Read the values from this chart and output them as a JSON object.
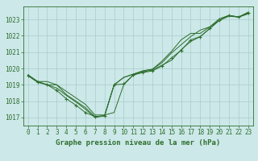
{
  "title": "Graphe pression niveau de la mer (hPa)",
  "bg_color": "#cce8e8",
  "grid_color": "#aacccc",
  "line_color": "#2d6e2d",
  "marker_color": "#2d6e2d",
  "xlim": [
    -0.5,
    23.5
  ],
  "ylim": [
    1016.5,
    1023.8
  ],
  "yticks": [
    1017,
    1018,
    1019,
    1020,
    1021,
    1022,
    1023
  ],
  "xticks": [
    0,
    1,
    2,
    3,
    4,
    5,
    6,
    7,
    8,
    9,
    10,
    11,
    12,
    13,
    14,
    15,
    16,
    17,
    18,
    19,
    20,
    21,
    22,
    23
  ],
  "series": [
    [
      1019.6,
      1019.2,
      1019.2,
      1019.0,
      1018.6,
      1018.2,
      1017.8,
      1017.15,
      1017.15,
      1017.3,
      1019.0,
      1019.6,
      1019.8,
      1019.9,
      1020.2,
      1020.5,
      1021.15,
      1021.65,
      1021.95,
      1022.45,
      1022.95,
      1023.2,
      1023.15,
      1023.35
    ],
    [
      1019.6,
      1019.2,
      1019.0,
      1019.0,
      1018.4,
      1018.0,
      1017.6,
      1017.05,
      1017.1,
      1019.0,
      1019.45,
      1019.65,
      1019.85,
      1019.95,
      1020.45,
      1021.05,
      1021.75,
      1022.15,
      1022.15,
      1022.55,
      1022.95,
      1023.25,
      1023.15,
      1023.35
    ],
    [
      1019.6,
      1019.2,
      1019.0,
      1018.8,
      1018.35,
      1017.95,
      1017.5,
      1017.0,
      1017.1,
      1019.0,
      1019.45,
      1019.65,
      1019.85,
      1019.95,
      1020.35,
      1020.95,
      1021.45,
      1021.95,
      1022.35,
      1022.55,
      1023.05,
      1023.25,
      1023.15,
      1023.45
    ]
  ],
  "main_series": [
    1019.55,
    1019.15,
    1019.0,
    1018.65,
    1018.15,
    1017.75,
    1017.3,
    1017.05,
    1017.1,
    1019.0,
    1019.05,
    1019.6,
    1019.75,
    1019.85,
    1020.15,
    1020.65,
    1021.1,
    1021.75,
    1021.95,
    1022.45,
    1022.95,
    1023.25,
    1023.15,
    1023.4
  ],
  "tick_fontsize": 5.5,
  "title_fontsize": 6.5
}
